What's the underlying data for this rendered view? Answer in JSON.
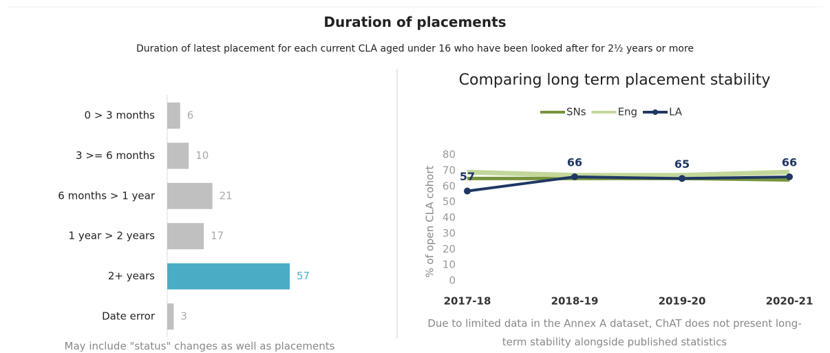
{
  "title": "Duration of placements",
  "subtitle": "Duration of latest placement for each current CLA aged under 16 who have been looked after for 2½ years or more",
  "chart_data": [
    {
      "type": "hbar",
      "categories": [
        "0 > 3 months",
        "3 >= 6 months",
        "6 months > 1 year",
        "1 year > 2 years",
        "2+ years",
        "Date error"
      ],
      "values": [
        6,
        10,
        21,
        17,
        57,
        3
      ],
      "colors": [
        "#c0c0c0",
        "#c0c0c0",
        "#c0c0c0",
        "#c0c0c0",
        "#4bacc6",
        "#c0c0c0"
      ],
      "note": "May include \"status\" changes as well as placements"
    },
    {
      "type": "line",
      "title": "Comparing long term placement stability",
      "categories": [
        "2017-18",
        "2018-19",
        "2019-20",
        "2020-21"
      ],
      "series": [
        {
          "name": "SNs",
          "color": "#77933c",
          "values": [
            65,
            65,
            65,
            64
          ]
        },
        {
          "name": "Eng",
          "color": "#c4d79b",
          "values": [
            69,
            67,
            67,
            69
          ]
        },
        {
          "name": "LA",
          "color": "#1f3864",
          "values": [
            57,
            66,
            65,
            66
          ],
          "markers": true,
          "data_labels": true
        }
      ],
      "y_label": "% of open CLA cohort",
      "ylim": [
        0,
        80
      ],
      "yticks": [
        0,
        10,
        20,
        30,
        40,
        50,
        60,
        70,
        80
      ],
      "legend": "top",
      "note": "Due to limited data in the Annex A dataset, ChAT does not present long-term stability alongside published statistics"
    }
  ]
}
